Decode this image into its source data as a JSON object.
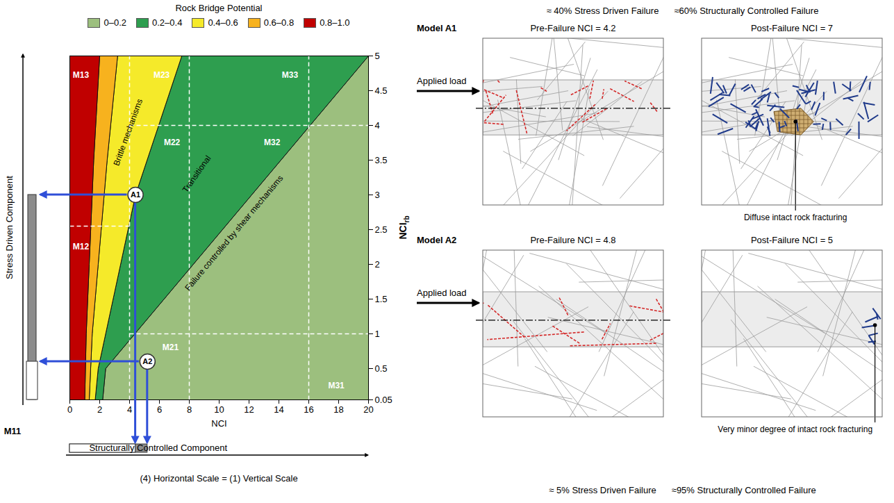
{
  "chart_data": {
    "type": "area",
    "legend": "top",
    "legend_title": "Rock Bridge Potential",
    "x_label": "NCI",
    "y_label": {
      "text": "NCI",
      "subscript": "rb"
    },
    "xlim": [
      0,
      20
    ],
    "xticks": [
      0,
      2,
      4,
      6,
      8,
      10,
      12,
      14,
      16,
      18,
      20
    ],
    "ylim": [
      0.05,
      5
    ],
    "yticks": [
      0.05,
      0.5,
      1,
      1.5,
      2,
      2.5,
      3,
      3.5,
      4,
      4.5,
      5
    ],
    "series": [
      {
        "name": "0–0.2",
        "color": "#9cbf7e",
        "x": [
          2.2,
          2.4,
          20,
          20
        ],
        "y": [
          0.05,
          0.5,
          5,
          0.05
        ]
      },
      {
        "name": "0.2–0.4",
        "color": "#2e9e4f",
        "x": [
          1.7,
          1.9,
          3,
          4.4,
          7.5,
          20,
          2.4,
          2.2
        ],
        "y": [
          0.05,
          0.5,
          1.6,
          3,
          5,
          5,
          0.5,
          0.05
        ]
      },
      {
        "name": "0.4–0.6",
        "color": "#f5ea2a",
        "x": [
          1.3,
          1.5,
          1.9,
          2.5,
          3.2,
          7.5,
          4.4,
          3,
          1.9,
          1.7
        ],
        "y": [
          0.05,
          1,
          2,
          3.5,
          5,
          5,
          3,
          1.6,
          0.5,
          0.05
        ]
      },
      {
        "name": "0.6–0.8",
        "color": "#f7b21e",
        "x": [
          1,
          1.1,
          1.3,
          1.6,
          2,
          3.2,
          2.5,
          1.9,
          1.5,
          1.3
        ],
        "y": [
          0.05,
          1,
          2,
          3.5,
          5,
          5,
          3.5,
          2,
          1,
          0.05
        ]
      },
      {
        "name": "0.8–1.0",
        "color": "#c00000",
        "x": [
          0,
          1,
          1.1,
          1.3,
          1.6,
          2,
          0
        ],
        "y": [
          0.05,
          0.05,
          1,
          2,
          3.5,
          5,
          5
        ]
      }
    ],
    "zone_labels": [
      {
        "text": "Brittle mechanisms",
        "x": 3.9,
        "y": 3.9
      },
      {
        "text": "Transitional",
        "x": 8.5,
        "y": 3.3
      },
      {
        "text": "Failure controlled by shear mechanisms",
        "x": 11,
        "y": 2.45
      }
    ],
    "cell_labels": [
      {
        "text": "M13",
        "x": 0.2,
        "y": 4.72
      },
      {
        "text": "M23",
        "x": 5.6,
        "y": 4.72
      },
      {
        "text": "M33",
        "x": 14.2,
        "y": 4.72
      },
      {
        "text": "M22",
        "x": 6.3,
        "y": 3.75
      },
      {
        "text": "M32",
        "x": 13,
        "y": 3.75
      },
      {
        "text": "M12",
        "x": 0.2,
        "y": 2.25
      },
      {
        "text": "M21",
        "x": 6.2,
        "y": 0.8
      },
      {
        "text": "M31",
        "x": 17.3,
        "y": 0.25
      }
    ],
    "cell_lines": [
      {
        "x": [
          4,
          4
        ],
        "y": [
          0.05,
          5
        ]
      },
      {
        "x": [
          8,
          8
        ],
        "y": [
          0.05,
          5
        ]
      },
      {
        "x": [
          16,
          16
        ],
        "y": [
          0.05,
          5
        ]
      },
      {
        "x": [
          4,
          20
        ],
        "y": [
          4,
          4
        ]
      },
      {
        "x": [
          4,
          20
        ],
        "y": [
          1,
          1
        ]
      },
      {
        "x": [
          0,
          4
        ],
        "y": [
          2.55,
          2.55
        ]
      }
    ],
    "points": [
      {
        "label": "A1",
        "x": 4.4,
        "y": 3
      },
      {
        "label": "A2",
        "x": 5.2,
        "y": 0.6
      }
    ],
    "stress_axis_label": "Stress Driven Component",
    "structural_axis_label": "Structurally Controlled Component",
    "outside_cell_label": "M11",
    "scale_note": "(4) Horizontal Scale = (1) Vertical Scale"
  },
  "models": [
    {
      "name": "Model A1",
      "load_label": "Applied load",
      "pre_failure": "Pre-Failure NCI = 4.2",
      "post_failure": "Post-Failure NCI = 7",
      "annotation": "Diffuse intact rock fracturing",
      "caption": [
        "≈ 40% Stress Driven Failure",
        "≈60% Structurally Controlled Failure"
      ]
    },
    {
      "name": "Model A2",
      "load_label": "Applied load",
      "pre_failure": "Pre-Failure NCI = 4.8",
      "post_failure": "Post-Failure NCI = 5",
      "annotation": "Very minor degree of intact rock fracturing",
      "caption": [
        "≈ 5% Stress Driven Failure",
        "≈95% Structurally Controlled Failure"
      ]
    }
  ]
}
